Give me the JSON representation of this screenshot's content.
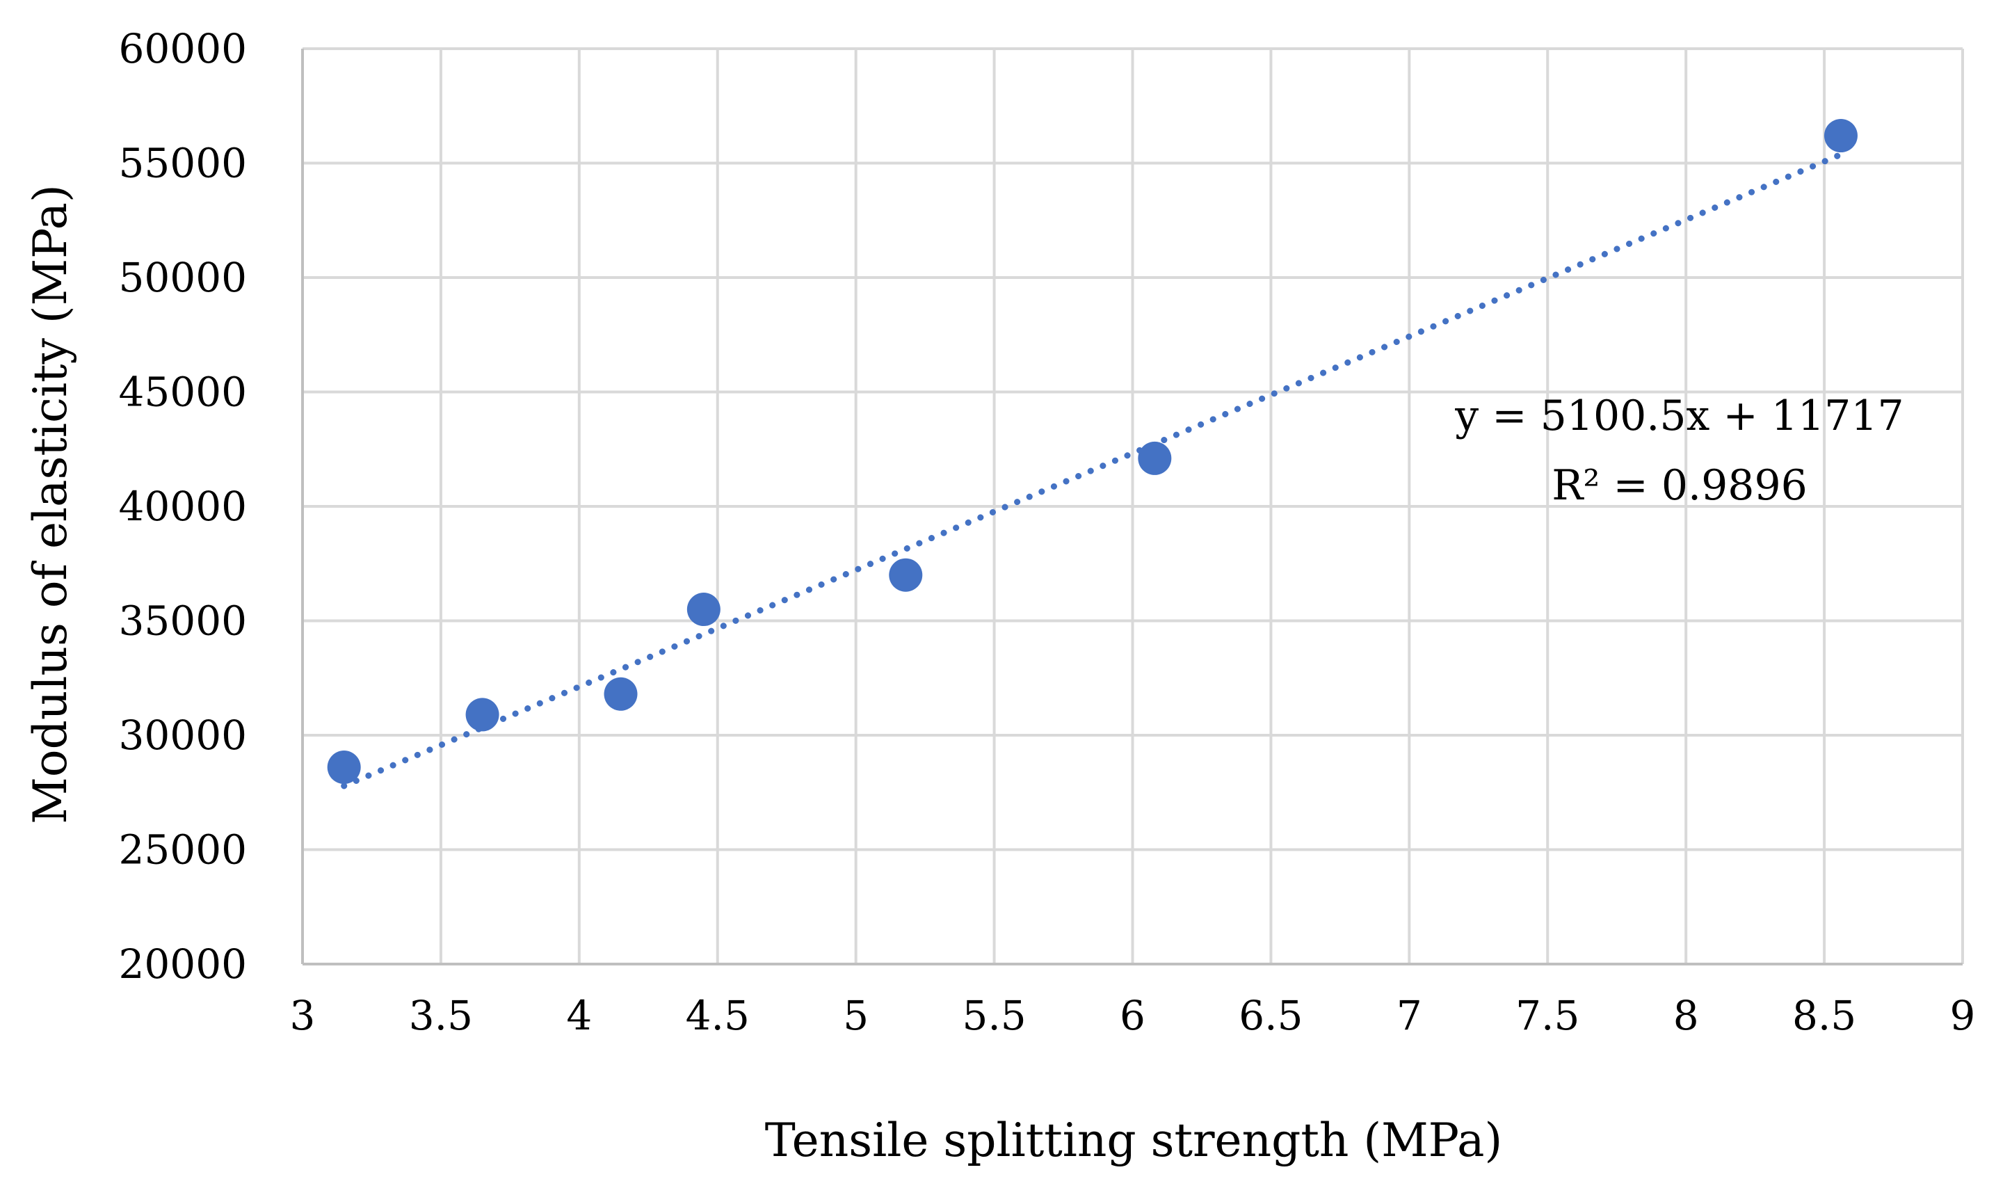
{
  "chart_data": {
    "type": "scatter",
    "title": "",
    "xlabel": "Tensile splitting strength  (MPa)",
    "ylabel": "Modulus of elasticity (MPa)",
    "xlim": [
      3,
      9
    ],
    "ylim": [
      20000,
      60000
    ],
    "x_ticks": [
      3,
      3.5,
      4,
      4.5,
      5,
      5.5,
      6,
      6.5,
      7,
      7.5,
      8,
      8.5,
      9
    ],
    "y_ticks": [
      20000,
      25000,
      30000,
      35000,
      40000,
      45000,
      50000,
      55000,
      60000
    ],
    "grid": true,
    "series": [
      {
        "name": "Modulus of elasticity",
        "x": [
          3.15,
          3.65,
          4.15,
          4.45,
          5.18,
          6.08,
          8.56
        ],
        "y": [
          28600,
          30900,
          31800,
          35500,
          37000,
          42100,
          56200
        ]
      }
    ],
    "trendline": {
      "type": "linear",
      "slope": 5100.5,
      "intercept": 11717,
      "x_range": [
        3.15,
        8.56
      ],
      "equation_label": "y = 5100.5x + 11717",
      "r2_label": "R² = 0.9896"
    },
    "colors": {
      "marker": "#4472C4",
      "trendline": "#4472C4",
      "grid": "#D9D9D9",
      "axis": "#BFBFBF",
      "text": "#000000"
    }
  }
}
